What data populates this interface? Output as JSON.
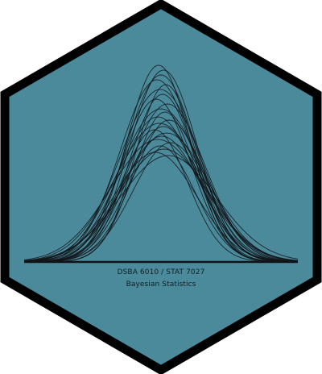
{
  "logo": {
    "course_code": "DSBA 6010 / STAT 7027",
    "course_title": "Bayesian Statistics",
    "colors": {
      "fill": "#4b8a9b",
      "border": "#000000",
      "curves": "#101418"
    }
  }
}
